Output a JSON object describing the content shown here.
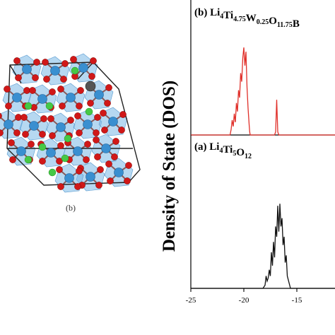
{
  "structure_panel": {
    "caption": "(b)",
    "atom_colors": {
      "ti": "#3a8fd0",
      "o": "#d01818",
      "li": "#46c846",
      "w": "#555555",
      "octahedron": "#7ab8e6"
    }
  },
  "ylabel": "Density of State (DOS)",
  "chart_data": [
    {
      "type": "line",
      "panel_label_prefix": "(b) ",
      "panel_label_formula": [
        {
          "t": "Li",
          "sub": "4"
        },
        {
          "t": "Ti",
          "sub": "4.75"
        },
        {
          "t": "W",
          "sub": "0.25"
        },
        {
          "t": "O",
          "sub": "11.75"
        },
        {
          "t": "B",
          "sub": ""
        }
      ],
      "color": "#e0302a",
      "xlim": [
        -25,
        -11.4
      ],
      "ylim": [
        0,
        1
      ],
      "x": [
        -21.5,
        -21.3,
        -21.2,
        -21.1,
        -21.0,
        -20.9,
        -20.8,
        -20.7,
        -20.6,
        -20.5,
        -20.4,
        -20.3,
        -20.2,
        -20.1,
        -20.0,
        -19.9,
        -19.8,
        -19.7,
        -19.6,
        -19.5,
        -19.45,
        -19.4,
        -19.3,
        -17.1,
        -17.0,
        -16.9,
        -16.8,
        -16.7
      ],
      "y": [
        0,
        0,
        0.05,
        0.14,
        0.08,
        0.2,
        0.12,
        0.3,
        0.22,
        0.42,
        0.35,
        0.58,
        0.5,
        0.72,
        0.82,
        0.65,
        0.78,
        0.45,
        0.25,
        0.1,
        0.03,
        0,
        0,
        0,
        0.03,
        0.33,
        0.03,
        0
      ]
    },
    {
      "type": "line",
      "panel_label_prefix": "(a) ",
      "panel_label_formula": [
        {
          "t": "Li",
          "sub": "4"
        },
        {
          "t": "Ti",
          "sub": "5"
        },
        {
          "t": "O",
          "sub": "12"
        }
      ],
      "color": "#111111",
      "xlabel": "",
      "xlim": [
        -25,
        -11.4
      ],
      "x_ticks": [
        -25,
        -20,
        -15
      ],
      "x_ticklabels": [
        "-25",
        "-20",
        "-15"
      ],
      "ylim": [
        0,
        1
      ],
      "x": [
        -18.4,
        -18.2,
        -18.0,
        -17.9,
        -17.8,
        -17.7,
        -17.6,
        -17.5,
        -17.4,
        -17.3,
        -17.2,
        -17.1,
        -17.0,
        -16.9,
        -16.8,
        -16.7,
        -16.6,
        -16.5,
        -16.4,
        -16.3,
        -16.2,
        -16.1,
        -16.0,
        -15.9,
        -15.8,
        -15.6,
        -15.4
      ],
      "y": [
        0,
        0,
        0.03,
        0.12,
        0.07,
        0.1,
        0.18,
        0.12,
        0.35,
        0.22,
        0.45,
        0.3,
        0.6,
        0.5,
        0.8,
        0.55,
        0.82,
        0.6,
        0.68,
        0.42,
        0.5,
        0.25,
        0.32,
        0.12,
        0.08,
        0,
        0
      ]
    }
  ]
}
